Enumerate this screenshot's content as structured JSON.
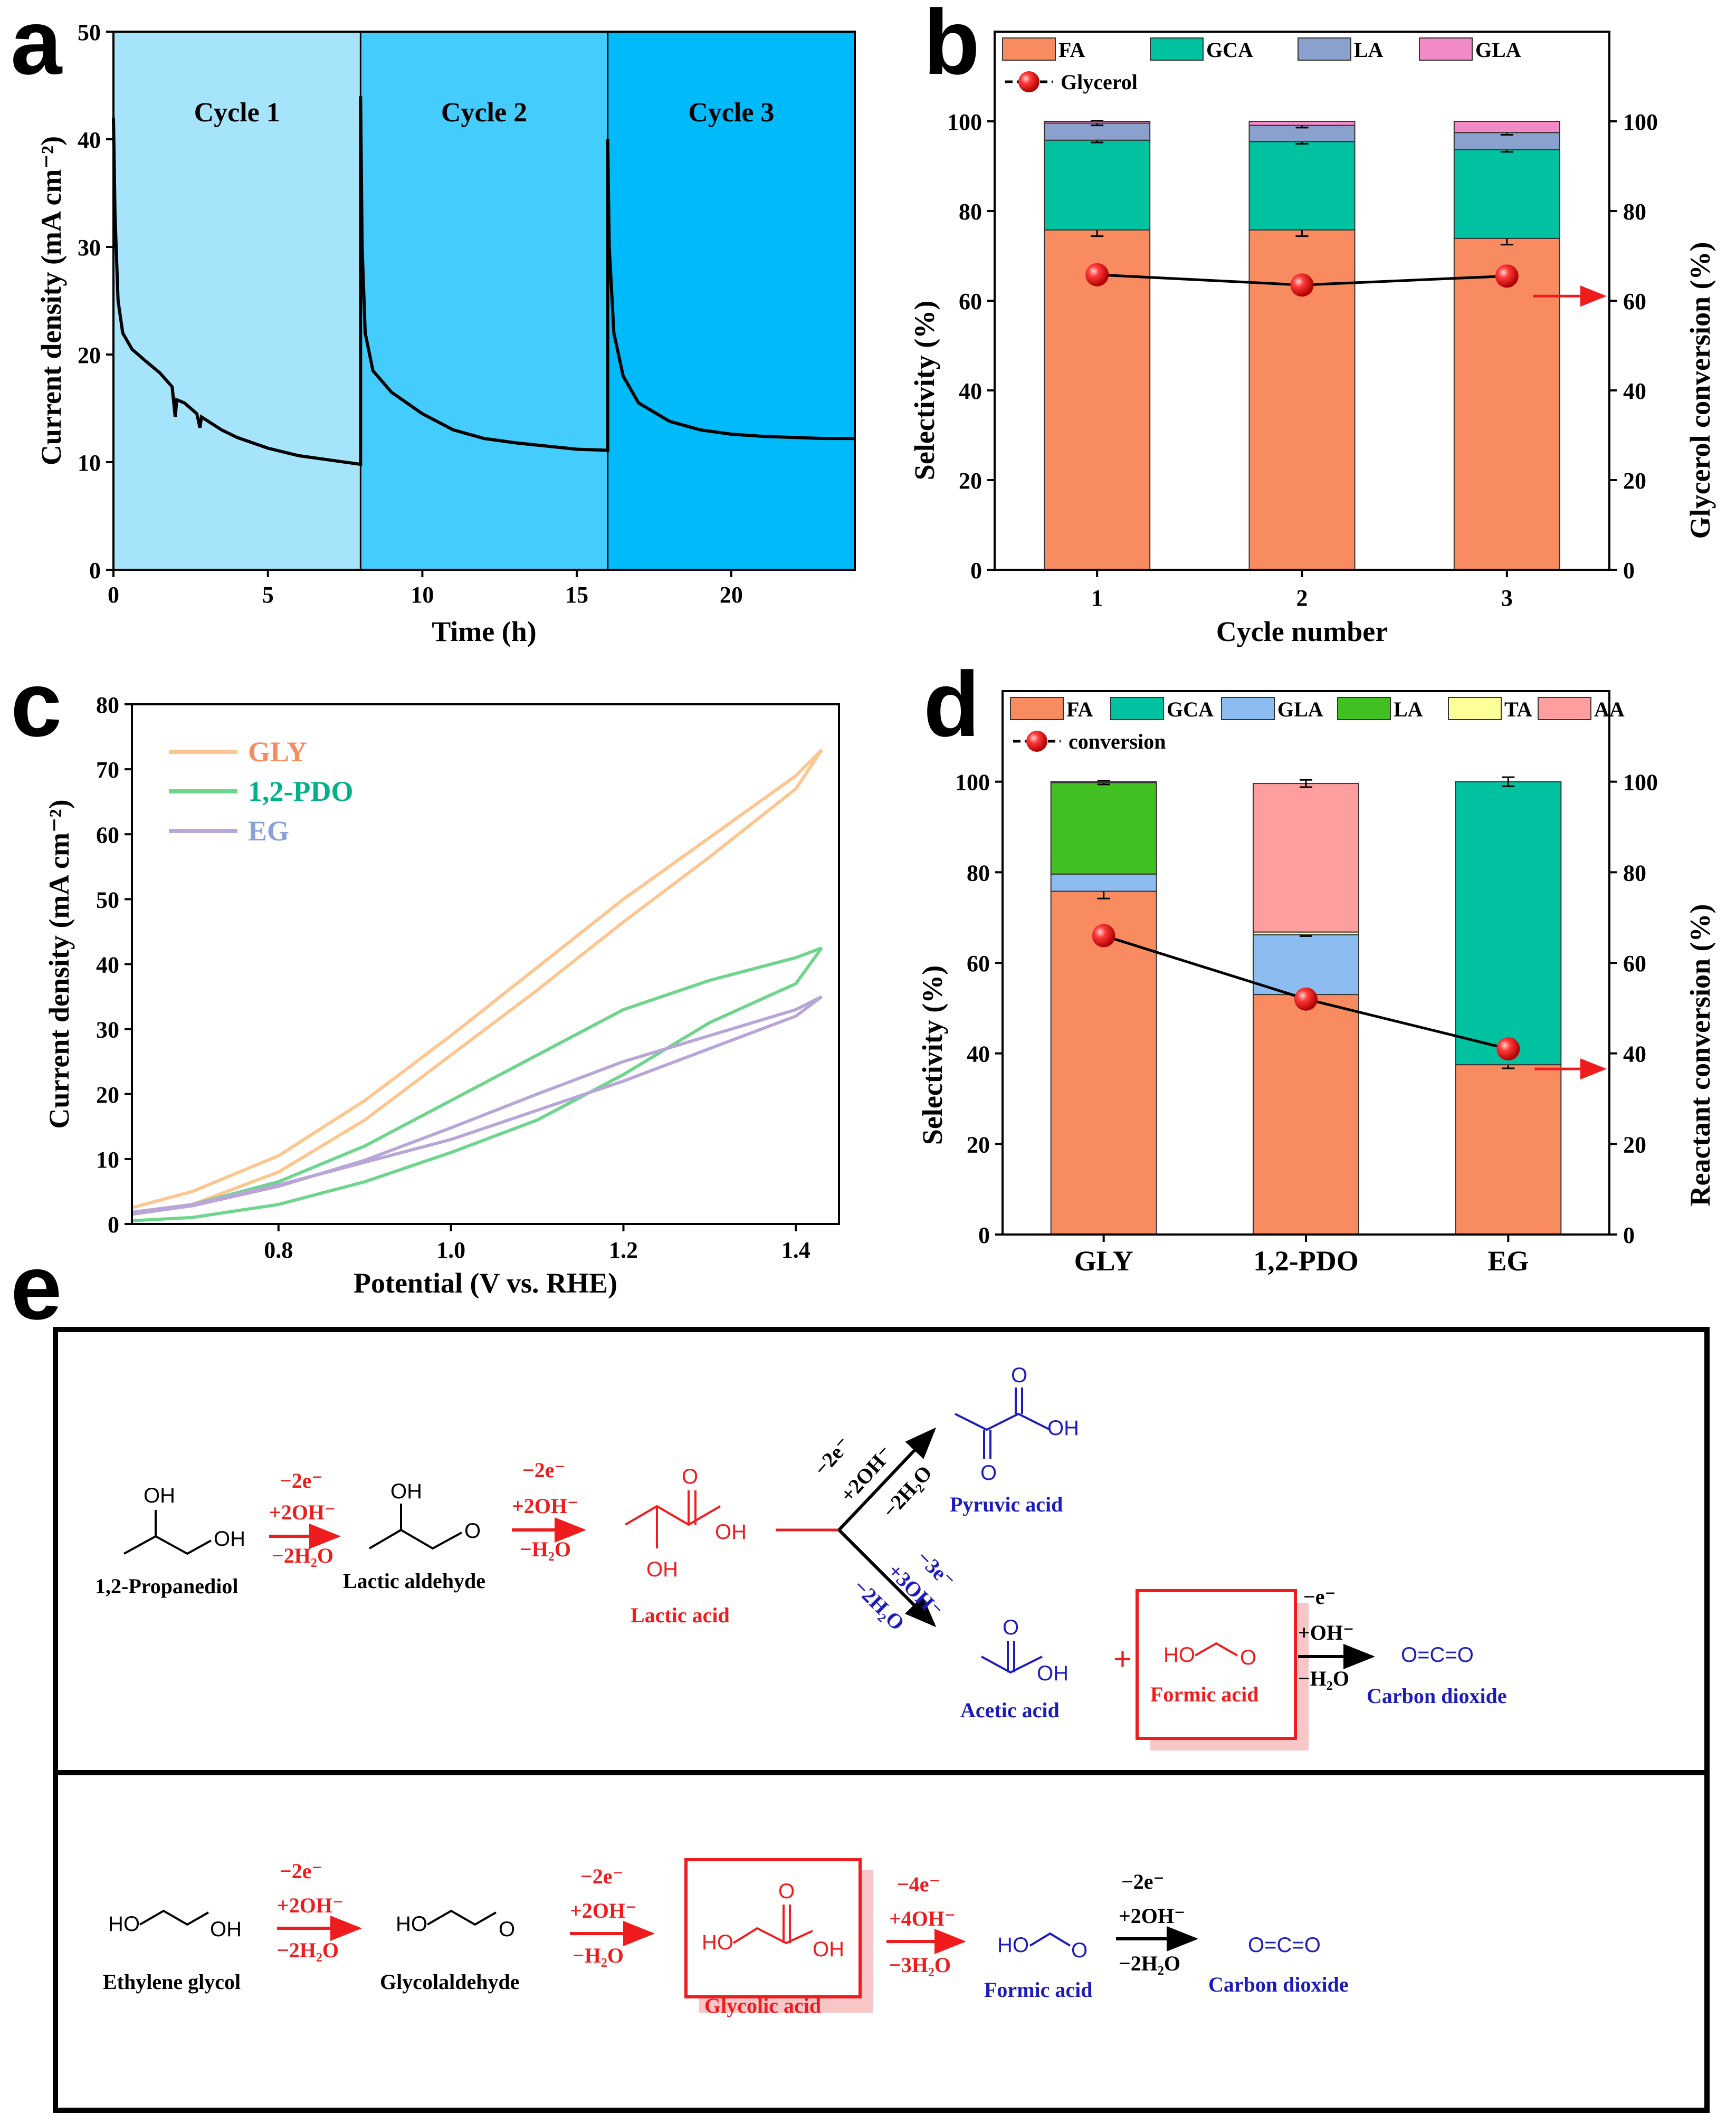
{
  "colors": {
    "FA": "#f98b60",
    "GCA": "#00c1a0",
    "LA_b": "#8aa0cd",
    "GLA_b": "#f28ac8",
    "GLA_d": "#8dbdf0",
    "LA_d": "#43c021",
    "TA": "#ffff99",
    "AA": "#ff9e9e",
    "GLY": "#ffc58f",
    "PDO": "#6dd58c",
    "EG": "#b9a6d9",
    "cycle1": "#a6e4fb",
    "cycle2": "#44ccfc",
    "cycle3": "#01baf9",
    "red": "#ee1c1c",
    "blue": "#1c1cbb",
    "marker": "#ee1111"
  },
  "panel_labels": {
    "a": "a",
    "b": "b",
    "c": "c",
    "d": "d",
    "e": "e"
  },
  "chart_data": [
    {
      "id": "a",
      "type": "line",
      "xlabel": "Time (h)",
      "ylabel": "Current density (mA cm⁻²)",
      "xlim": [
        0,
        24
      ],
      "ylim": [
        0,
        50
      ],
      "xticks": [
        "0",
        "5",
        "10",
        "15",
        "20"
      ],
      "yticks": [
        "0",
        "10",
        "20",
        "30",
        "40",
        "50"
      ],
      "regions": [
        {
          "label": "Cycle 1",
          "x": [
            0,
            8
          ]
        },
        {
          "label": "Cycle 2",
          "x": [
            8,
            16
          ]
        },
        {
          "label": "Cycle 3",
          "x": [
            16,
            24
          ]
        }
      ],
      "series": [
        {
          "name": "current",
          "points": [
            [
              0,
              42
            ],
            [
              0.05,
              33
            ],
            [
              0.15,
              25
            ],
            [
              0.3,
              22
            ],
            [
              0.6,
              20.5
            ],
            [
              1.0,
              19.5
            ],
            [
              1.5,
              18.3
            ],
            [
              1.9,
              17
            ],
            [
              2.0,
              14.2
            ],
            [
              2.05,
              15.8
            ],
            [
              2.3,
              15.5
            ],
            [
              2.7,
              14.5
            ],
            [
              2.8,
              13.2
            ],
            [
              2.85,
              14.2
            ],
            [
              3.5,
              13
            ],
            [
              4,
              12.3
            ],
            [
              5,
              11.3
            ],
            [
              6,
              10.6
            ],
            [
              7,
              10.2
            ],
            [
              8,
              9.8
            ],
            [
              8.0,
              44
            ],
            [
              8.05,
              30
            ],
            [
              8.15,
              22
            ],
            [
              8.4,
              18.5
            ],
            [
              9,
              16.5
            ],
            [
              10,
              14.5
            ],
            [
              11,
              13
            ],
            [
              12,
              12.2
            ],
            [
              13,
              11.8
            ],
            [
              14,
              11.5
            ],
            [
              15,
              11.2
            ],
            [
              16,
              11.1
            ],
            [
              16.0,
              40
            ],
            [
              16.05,
              30
            ],
            [
              16.2,
              22
            ],
            [
              16.5,
              18
            ],
            [
              17,
              15.5
            ],
            [
              18,
              13.8
            ],
            [
              19,
              13
            ],
            [
              20,
              12.6
            ],
            [
              21,
              12.4
            ],
            [
              22,
              12.3
            ],
            [
              23,
              12.2
            ],
            [
              24,
              12.2
            ]
          ]
        }
      ]
    },
    {
      "id": "b",
      "type": "bar",
      "xlabel": "Cycle number",
      "ylabel": "Selectivity (%)",
      "ylabel_right": "Glycerol conversion (%)",
      "categories": [
        "1",
        "2",
        "3"
      ],
      "ylim": [
        0,
        120
      ],
      "yticks": [
        "0",
        "20",
        "40",
        "60",
        "80",
        "100"
      ],
      "legend": [
        "FA",
        "GCA",
        "LA",
        "GLA"
      ],
      "line_legend": "Glycerol",
      "series": [
        {
          "name": "FA",
          "values": [
            75.8,
            75.8,
            73.9
          ],
          "err": [
            1.4,
            1.4,
            1.4
          ]
        },
        {
          "name": "GCA",
          "values": [
            20.0,
            19.7,
            19.8
          ],
          "err": [
            0.5,
            0.5,
            0.5
          ]
        },
        {
          "name": "LA",
          "values": [
            3.8,
            3.6,
            3.8
          ],
          "err": [
            0.5,
            0.5,
            0.5
          ]
        },
        {
          "name": "GLA",
          "values": [
            0.4,
            0.9,
            2.5
          ],
          "err": [
            0,
            0,
            0
          ]
        }
      ],
      "conversion": [
        65.8,
        63.5,
        65.5
      ]
    },
    {
      "id": "c",
      "type": "line",
      "xlabel": "Potential (V vs. RHE)",
      "ylabel": "Current density (mA cm⁻²)",
      "xlim": [
        0.63,
        1.45
      ],
      "ylim": [
        0,
        80
      ],
      "xticks": [
        "0.8",
        "1.0",
        "1.2",
        "1.4"
      ],
      "yticks": [
        "0",
        "10",
        "20",
        "30",
        "40",
        "50",
        "60",
        "70",
        "80"
      ],
      "series": [
        {
          "name": "GLY",
          "forward": [
            [
              0.63,
              2.5
            ],
            [
              0.7,
              5
            ],
            [
              0.8,
              10.5
            ],
            [
              0.9,
              19
            ],
            [
              1.0,
              29
            ],
            [
              1.1,
              39.5
            ],
            [
              1.2,
              50
            ],
            [
              1.3,
              59.5
            ],
            [
              1.4,
              69
            ],
            [
              1.43,
              73
            ]
          ],
          "backward": [
            [
              1.43,
              73
            ],
            [
              1.4,
              67
            ],
            [
              1.3,
              56.5
            ],
            [
              1.2,
              46.5
            ],
            [
              1.1,
              36
            ],
            [
              1.0,
              26
            ],
            [
              0.9,
              16
            ],
            [
              0.8,
              8
            ],
            [
              0.7,
              3
            ],
            [
              0.63,
              1.5
            ]
          ]
        },
        {
          "name": "1,2-PDO",
          "forward": [
            [
              0.63,
              1.5
            ],
            [
              0.7,
              3
            ],
            [
              0.8,
              6.5
            ],
            [
              0.9,
              12
            ],
            [
              1.0,
              19
            ],
            [
              1.1,
              26
            ],
            [
              1.2,
              33
            ],
            [
              1.3,
              37.5
            ],
            [
              1.4,
              41
            ],
            [
              1.43,
              42.5
            ]
          ],
          "backward": [
            [
              1.43,
              42.5
            ],
            [
              1.4,
              37
            ],
            [
              1.3,
              31
            ],
            [
              1.2,
              23
            ],
            [
              1.1,
              16
            ],
            [
              1.0,
              11
            ],
            [
              0.9,
              6.5
            ],
            [
              0.8,
              3
            ],
            [
              0.7,
              1
            ],
            [
              0.63,
              0.5
            ]
          ]
        },
        {
          "name": "EG",
          "forward": [
            [
              0.63,
              1.5
            ],
            [
              0.7,
              2.8
            ],
            [
              0.8,
              5.8
            ],
            [
              0.9,
              9.8
            ],
            [
              1.0,
              14.8
            ],
            [
              1.1,
              20
            ],
            [
              1.2,
              25
            ],
            [
              1.3,
              29
            ],
            [
              1.4,
              33
            ],
            [
              1.43,
              35
            ]
          ],
          "backward": [
            [
              1.43,
              35
            ],
            [
              1.4,
              32
            ],
            [
              1.3,
              27
            ],
            [
              1.2,
              22
            ],
            [
              1.1,
              17.5
            ],
            [
              1.0,
              13
            ],
            [
              0.9,
              9.5
            ],
            [
              0.8,
              6
            ],
            [
              0.7,
              3
            ],
            [
              0.63,
              1.8
            ]
          ]
        }
      ]
    },
    {
      "id": "d",
      "type": "bar",
      "xlabel": "",
      "ylabel": "Selectivity (%)",
      "ylabel_right": "Reactant conversion (%)",
      "categories": [
        "GLY",
        "1,2-PDO",
        "EG"
      ],
      "ylim": [
        0,
        120
      ],
      "yticks": [
        "0",
        "20",
        "40",
        "60",
        "80",
        "100"
      ],
      "legend": [
        "FA",
        "GCA",
        "GLA",
        "LA",
        "TA",
        "AA"
      ],
      "line_legend": "conversion",
      "series": [
        {
          "name": "FA",
          "values": [
            75.8,
            53.0,
            37.5
          ],
          "err": [
            1.6,
            0,
            0.8
          ]
        },
        {
          "name": "GCA",
          "values": [
            0,
            0,
            62.5
          ],
          "err": [
            0,
            0,
            1.0
          ]
        },
        {
          "name": "GLA",
          "values": [
            3.8,
            13.2,
            0
          ],
          "err": [
            0,
            0.3,
            0
          ]
        },
        {
          "name": "LA",
          "values": [
            20.2,
            0,
            0
          ],
          "err": [
            0.4,
            0,
            0
          ]
        },
        {
          "name": "TA",
          "values": [
            0.2,
            0.6,
            0
          ],
          "err": [
            0,
            0,
            0
          ]
        },
        {
          "name": "AA",
          "values": [
            0,
            32.8,
            0
          ],
          "err": [
            0,
            0.8,
            0
          ]
        }
      ],
      "conversion": [
        66,
        52,
        41
      ]
    }
  ],
  "scheme": {
    "row1": {
      "propanediol": "1,2-Propanediol",
      "lactic_aldehyde": "Lactic aldehyde",
      "lactic_acid": "Lactic acid",
      "pyruvic_acid": "Pyruvic acid",
      "acetic_acid": "Acetic acid",
      "formic_acid": "Formic acid",
      "carbon_dioxide": "Carbon dioxide",
      "cond1": [
        "−2e⁻",
        "+2OH⁻",
        "−2H₂O"
      ],
      "cond2": [
        "−2e⁻",
        "+2OH⁻",
        "−H₂O"
      ],
      "cond_up": "−2e⁻",
      "cond_up2": "+2OH⁻",
      "cond_up3": "−2H₂O",
      "cond_down": "−3e⁻",
      "cond_down2": "+3OH⁻",
      "cond_down3": "−2H₂O",
      "cond_co2": [
        "−e⁻",
        "+OH⁻",
        "−H₂O"
      ],
      "plus": "+",
      "co2_formula": "O=C=O"
    },
    "row2": {
      "ethylene_glycol": "Ethylene glycol",
      "glycolaldehyde": "Glycolaldehyde",
      "glycolic_acid": "Glycolic acid",
      "formic_acid": "Formic acid",
      "carbon_dioxide": "Carbon dioxide",
      "cond1": [
        "−2e⁻",
        "+2OH⁻",
        "−2H₂O"
      ],
      "cond2": [
        "−2e⁻",
        "+2OH⁻",
        "−H₂O"
      ],
      "cond3": [
        "−4e⁻",
        "+4OH⁻",
        "−3H₂O"
      ],
      "cond4": [
        "−2e⁻",
        "+2OH⁻",
        "−2H₂O"
      ],
      "co2_formula": "O=C=O"
    },
    "atoms": {
      "OH": "OH",
      "HO": "HO",
      "O": "O"
    }
  }
}
